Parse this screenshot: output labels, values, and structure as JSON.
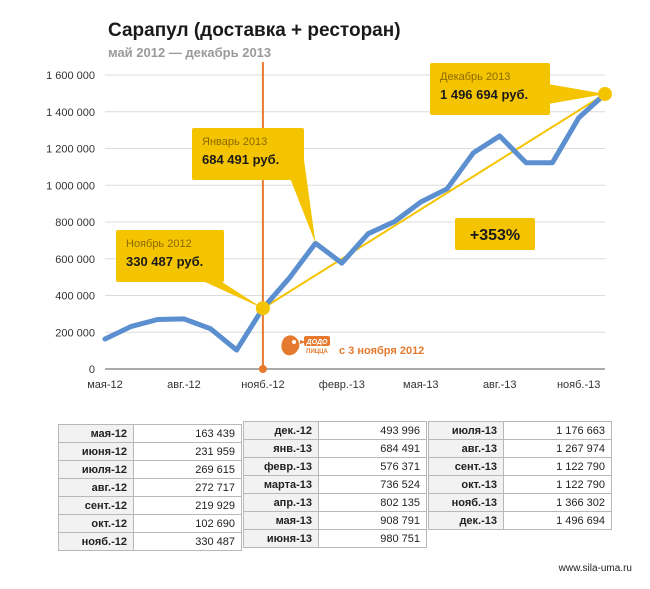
{
  "title": "Сарапул (доставка + ресторан)",
  "subtitle": "май 2012 — декабрь 2013",
  "chart_data": {
    "type": "line",
    "title": "Сарапул (доставка + ресторан)",
    "subtitle": "май 2012 — декабрь 2013",
    "ylim": [
      0,
      1600000
    ],
    "yticks": [
      "0",
      "200 000",
      "400 000",
      "600 000",
      "800 000",
      "1 000 000",
      "1 200 000",
      "1 400 000",
      "1 600 000"
    ],
    "xticks": [
      "мая-12",
      "авг.-12",
      "нояб.-12",
      "февр.-13",
      "мая-13",
      "авг.-13",
      "нояб.-13"
    ],
    "grid": true,
    "line_color": "#5b8fcf",
    "accent_color": "#f5c400",
    "marker_color": "#e57a2e",
    "x": [
      "мая-12",
      "июня-12",
      "июля-12",
      "авг.-12",
      "сент.-12",
      "окт.-12",
      "нояб.-12",
      "дек.-12",
      "янв.-13",
      "февр.-13",
      "марта-13",
      "апр.-13",
      "мая-13",
      "июня-13",
      "июля-13",
      "авг.-13",
      "сент.-13",
      "окт.-13",
      "нояб.-13",
      "дек.-13"
    ],
    "values": [
      163439,
      231959,
      269615,
      272717,
      219929,
      102690,
      330487,
      493996,
      684491,
      576371,
      736524,
      802135,
      908791,
      980751,
      1176663,
      1267974,
      1122790,
      1122790,
      1366302,
      1496694
    ],
    "annotations": [
      {
        "label": "Ноябрь 2012",
        "value": "330 487 руб."
      },
      {
        "label": "Январь 2013",
        "value": "684 491 руб."
      },
      {
        "label": "Декабрь 2013",
        "value": "1 496 694 руб."
      }
    ],
    "growth_label": "+353%",
    "dodo_note": "с 3 ноября 2012",
    "dodo_logo_text": "ДОДО ПИЦЦА"
  },
  "tables": [
    [
      [
        "мая-12",
        "163 439"
      ],
      [
        "июня-12",
        "231 959"
      ],
      [
        "июля-12",
        "269 615"
      ],
      [
        "авг.-12",
        "272 717"
      ],
      [
        "сент.-12",
        "219 929"
      ],
      [
        "окт.-12",
        "102 690"
      ],
      [
        "нояб.-12",
        "330 487"
      ]
    ],
    [
      [
        "дек.-12",
        "493 996"
      ],
      [
        "янв.-13",
        "684 491"
      ],
      [
        "февр.-13",
        "576 371"
      ],
      [
        "марта-13",
        "736 524"
      ],
      [
        "апр.-13",
        "802 135"
      ],
      [
        "мая-13",
        "908 791"
      ],
      [
        "июня-13",
        "980 751"
      ]
    ],
    [
      [
        "июля-13",
        "1 176 663"
      ],
      [
        "авг.-13",
        "1 267 974"
      ],
      [
        "сент.-13",
        "1 122 790"
      ],
      [
        "окт.-13",
        "1 122 790"
      ],
      [
        "нояб.-13",
        "1 366 302"
      ],
      [
        "дек.-13",
        "1 496 694"
      ]
    ]
  ],
  "footer": "www.sila-uma.ru"
}
